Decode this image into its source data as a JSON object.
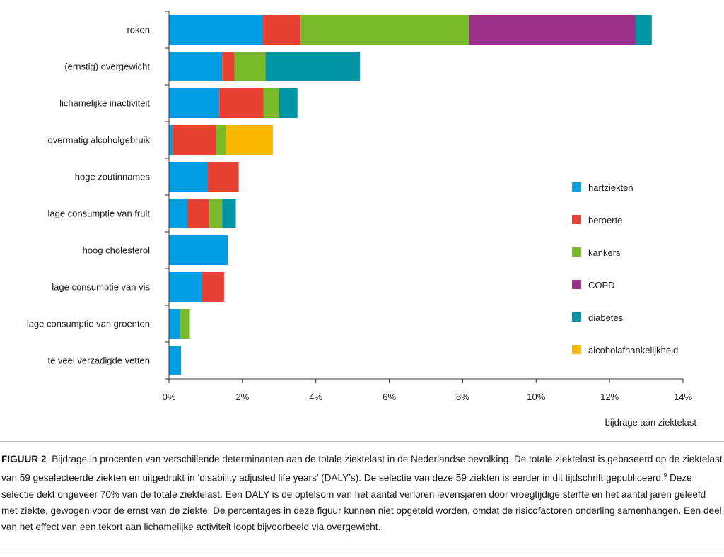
{
  "chart_data": {
    "type": "bar",
    "orientation": "horizontal",
    "stacked": true,
    "categories": [
      "roken",
      "(ernstig) overgewicht",
      "lichamelijke inactiviteit",
      "overmatig alcoholgebruik",
      "hoge zoutinnames",
      "lage consumptie van fruit",
      "hoog cholesterol",
      "lage consumptie van vis",
      "lage consumptie van groenten",
      "te veel verzadigde vetten"
    ],
    "series": [
      {
        "name": "hartziekten",
        "color": "#009fe3",
        "values": [
          2.55,
          1.45,
          1.37,
          0.1,
          1.05,
          0.5,
          1.6,
          0.9,
          0.3,
          0.33
        ]
      },
      {
        "name": "beroerte",
        "color": "#e84134",
        "values": [
          1.03,
          0.33,
          1.2,
          1.18,
          0.85,
          0.6,
          0,
          0.6,
          0,
          0
        ]
      },
      {
        "name": "kankers",
        "color": "#7ab929",
        "values": [
          4.6,
          0.85,
          0.43,
          0.28,
          0,
          0.35,
          0,
          0,
          0.27,
          0
        ]
      },
      {
        "name": "COPD",
        "color": "#9b3089",
        "values": [
          4.52,
          0,
          0,
          0,
          0,
          0,
          0,
          0,
          0,
          0
        ]
      },
      {
        "name": "diabetes",
        "color": "#0095a6",
        "values": [
          0.45,
          2.57,
          0.5,
          0,
          0,
          0.37,
          0,
          0,
          0,
          0
        ]
      },
      {
        "name": "alcoholafhankelijkheid",
        "color": "#fbb800",
        "values": [
          0,
          0,
          0,
          1.27,
          0,
          0,
          0,
          0,
          0,
          0
        ]
      }
    ],
    "xlim": [
      0,
      14
    ],
    "xticks": [
      0,
      2,
      4,
      6,
      8,
      10,
      12,
      14
    ],
    "tick_labels": [
      "0%",
      "2%",
      "4%",
      "6%",
      "8%",
      "10%",
      "12%",
      "14%"
    ],
    "xlabel": "bijdrage aan ziektelast",
    "ylabel": "",
    "title": "",
    "grid": false,
    "legend_position": "right"
  },
  "caption": {
    "figure_label": "FIGUUR 2",
    "text_1": "Bijdrage in procenten van verschillende determinanten aan de totale ziektelast in de Nederlandse bevolking. De totale ziektelast is gebaseerd op de ziektelast van 59 geselecteerde ziekten en uitgedrukt in ‘disability adjusted life years’ (DALY’s). De selectie van deze 59 ziekten is eerder in dit tijdschrift gepubliceerd.",
    "footnote_ref": "9",
    "text_2": " Deze selectie dekt ongeveer 70% van de totale ziektelast. Een DALY is de optelsom van het aantal verloren levensjaren door vroegtijdige sterfte en het aantal jaren geleefd met ziekte, gewogen voor de ernst van de ziekte. De percentages in deze figuur kunnen niet opgeteld worden, omdat de risicofactoren onderling samenhangen. Een deel van het effect van een tekort aan lichamelijke activiteit loopt bijvoorbeeld via overgewicht."
  }
}
